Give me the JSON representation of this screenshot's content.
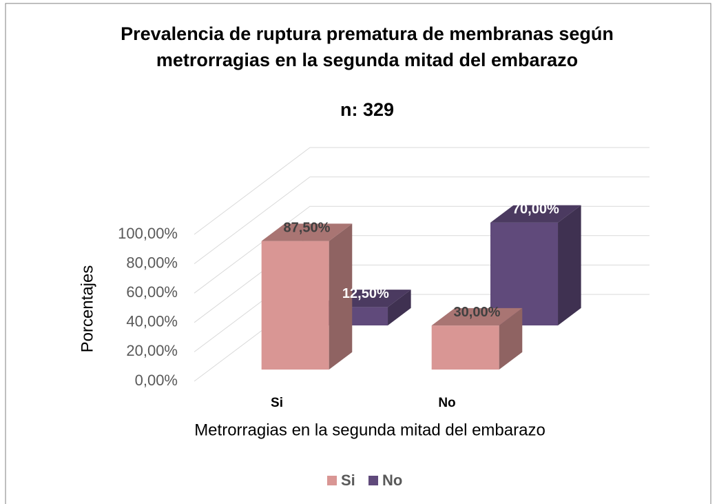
{
  "chart_data": {
    "type": "bar3d",
    "title": "Prevalencia de ruptura prematura de membranas según metrorragias en la segunda mitad del embarazo",
    "subtitle": "n: 329",
    "x_label": "Metrorragias en la segunda mitad del embarazo",
    "y_label": "Porcentajes",
    "categories": [
      "Si",
      "No"
    ],
    "series": [
      {
        "name": "Si",
        "color": "#d99694",
        "label_color": "#404040",
        "values": [
          87.5,
          30
        ],
        "value_labels": [
          "87,50%",
          "30,00%"
        ]
      },
      {
        "name": "No",
        "color": "#604a7b",
        "label_color": "#ffffff",
        "values": [
          12.5,
          70
        ],
        "value_labels": [
          "12,50%",
          "70,00%"
        ]
      }
    ],
    "ylim": [
      0,
      100
    ],
    "yticks": [
      {
        "value": 0,
        "label": "0,00%"
      },
      {
        "value": 20,
        "label": "20,00%"
      },
      {
        "value": 40,
        "label": "40,00%"
      },
      {
        "value": 60,
        "label": "60,00%"
      },
      {
        "value": 80,
        "label": "80,00%"
      },
      {
        "value": 100,
        "label": "100,00%"
      }
    ],
    "grid": true,
    "legend": "bottom"
  }
}
